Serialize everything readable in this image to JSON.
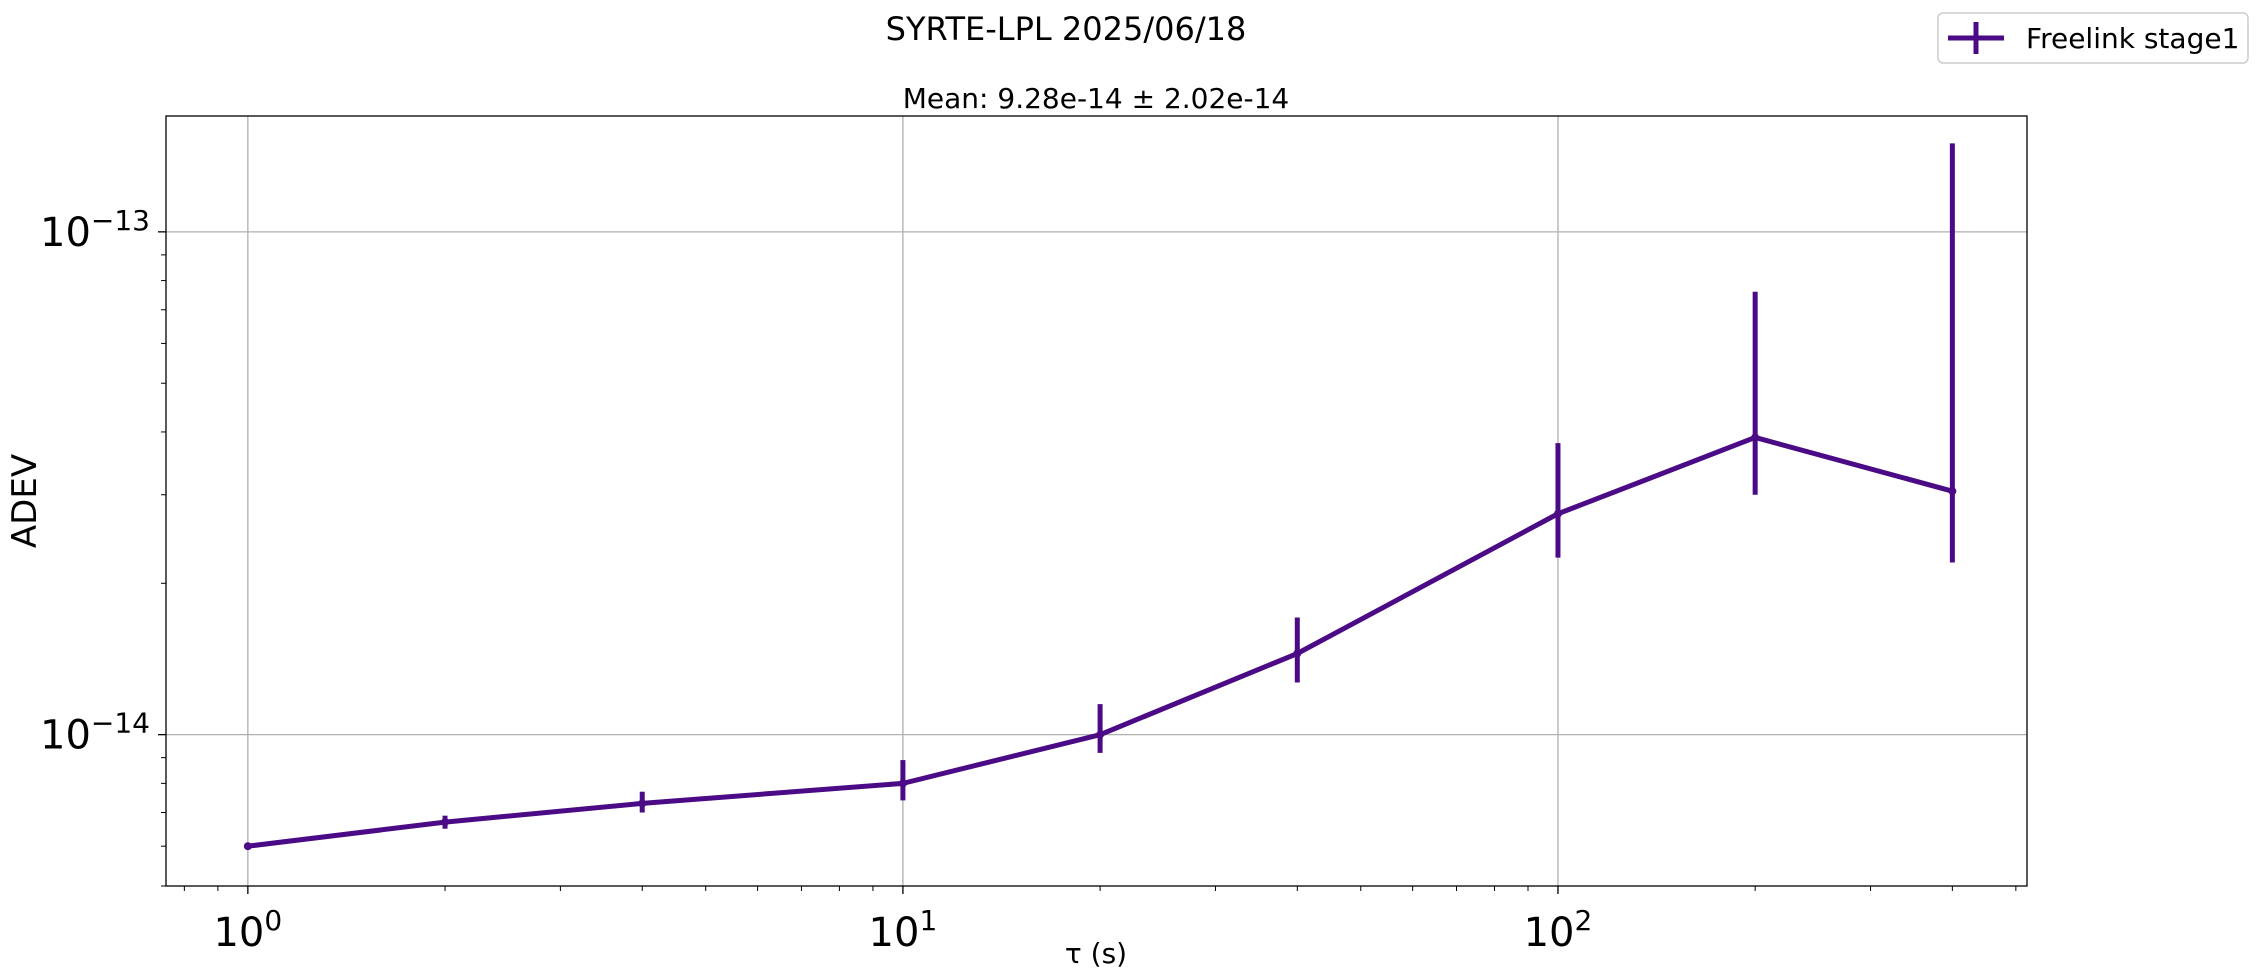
{
  "chart_data": {
    "type": "line",
    "title": "SYRTE-LPL 2025/06/18",
    "subtitle": "Mean: 9.28e-14 ± 2.02e-14",
    "xlabel": "τ (s)",
    "ylabel": "ADEV",
    "x_scale": "log",
    "y_scale": "log",
    "xlim": [
      0.75,
      520
    ],
    "ylim": [
      5e-15,
      1.7e-13
    ],
    "x_ticks": [
      {
        "base": "10",
        "exp": "0",
        "value": 1
      },
      {
        "base": "10",
        "exp": "1",
        "value": 10
      },
      {
        "base": "10",
        "exp": "2",
        "value": 100
      }
    ],
    "y_ticks": [
      {
        "base": "10",
        "exp": "−14",
        "value": 1e-14
      },
      {
        "base": "10",
        "exp": "−13",
        "value": 1e-13
      }
    ],
    "grid": true,
    "legend_position": "top-right",
    "series": [
      {
        "name": "Freelink stage1",
        "color": "#4b0a86",
        "points": [
          {
            "x": 1,
            "y": 6e-15,
            "ylo": 6e-15,
            "yhi": 6e-15
          },
          {
            "x": 2,
            "y": 6.7e-15,
            "ylo": 6.5e-15,
            "yhi": 6.9e-15
          },
          {
            "x": 4,
            "y": 7.3e-15,
            "ylo": 7e-15,
            "yhi": 7.7e-15
          },
          {
            "x": 10,
            "y": 8e-15,
            "ylo": 7.4e-15,
            "yhi": 8.9e-15
          },
          {
            "x": 20,
            "y": 1e-14,
            "ylo": 9.2e-15,
            "yhi": 1.15e-14
          },
          {
            "x": 40,
            "y": 1.45e-14,
            "ylo": 1.27e-14,
            "yhi": 1.71e-14
          },
          {
            "x": 100,
            "y": 2.75e-14,
            "ylo": 2.25e-14,
            "yhi": 3.8e-14
          },
          {
            "x": 200,
            "y": 3.9e-14,
            "ylo": 3e-14,
            "yhi": 7.6e-14
          },
          {
            "x": 400,
            "y": 3.05e-14,
            "ylo": 2.2e-14,
            "yhi": 1.5e-13
          }
        ]
      }
    ]
  }
}
